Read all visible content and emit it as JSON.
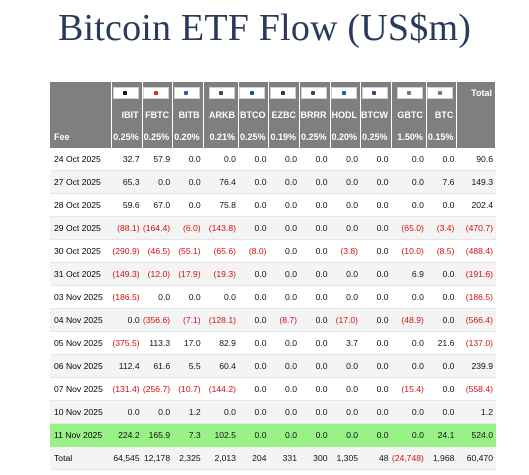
{
  "title": "Bitcoin ETF Flow (US$m)",
  "colors": {
    "header_bg": "#7f7f7f",
    "negative": "#d01010",
    "highlight_row": "#9af287"
  },
  "logos": [
    "BlackRock",
    "Fidelity",
    "Bitwise",
    "ARK 21SHARES",
    "Invesco",
    "Franklin",
    "VALKYRIE",
    "VanEck",
    "WisdomTree",
    "GRAYSCALE",
    "GRAYSCALE"
  ],
  "logo_colors": [
    "#111111",
    "#e12828",
    "#2a5ab8",
    "#444444",
    "#1a4c9c",
    "#2a3a5c",
    "#444444",
    "#1c5aa8",
    "#2a4a80",
    "#777777",
    "#777777"
  ],
  "tickers": [
    "IBIT",
    "FBTC",
    "BITB",
    "ARKB",
    "BTCO",
    "EZBC",
    "BRRR",
    "HODL",
    "BTCW",
    "GBTC",
    "BTC"
  ],
  "total_label": "Total",
  "fee_label": "Fee",
  "fees": [
    "0.25%",
    "0.25%",
    "0.20%",
    "0.21%",
    "0.25%",
    "0.19%",
    "0.25%",
    "0.20%",
    "0.25%",
    "1.50%",
    "0.15%"
  ],
  "rows": [
    {
      "date": "24 Oct 2025",
      "values": [
        "32.7",
        "57.9",
        "0.0",
        "0.0",
        "0.0",
        "0.0",
        "0.0",
        "0.0",
        "0.0",
        "0.0",
        "0.0"
      ],
      "total": "90.6"
    },
    {
      "date": "27 Oct 2025",
      "values": [
        "65.3",
        "0.0",
        "0.0",
        "76.4",
        "0.0",
        "0.0",
        "0.0",
        "0.0",
        "0.0",
        "0.0",
        "7.6"
      ],
      "total": "149.3"
    },
    {
      "date": "28 Oct 2025",
      "values": [
        "59.6",
        "67.0",
        "0.0",
        "75.8",
        "0.0",
        "0.0",
        "0.0",
        "0.0",
        "0.0",
        "0.0",
        "0.0"
      ],
      "total": "202.4"
    },
    {
      "date": "29 Oct 2025",
      "values": [
        "(88.1)",
        "(164.4)",
        "(6.0)",
        "(143.8)",
        "0.0",
        "0.0",
        "0.0",
        "0.0",
        "0.0",
        "(65.0)",
        "(3.4)"
      ],
      "total": "(470.7)"
    },
    {
      "date": "30 Oct 2025",
      "values": [
        "(290.9)",
        "(46.5)",
        "(55.1)",
        "(65.6)",
        "(8.0)",
        "0.0",
        "0.0",
        "(3.8)",
        "0.0",
        "(10.0)",
        "(8.5)"
      ],
      "total": "(488.4)"
    },
    {
      "date": "31 Oct 2025",
      "values": [
        "(149.3)",
        "(12.0)",
        "(17.9)",
        "(19.3)",
        "0.0",
        "0.0",
        "0.0",
        "0.0",
        "0.0",
        "6.9",
        "0.0"
      ],
      "total": "(191.6)"
    },
    {
      "date": "03 Nov 2025",
      "values": [
        "(186.5)",
        "0.0",
        "0.0",
        "0.0",
        "0.0",
        "0.0",
        "0.0",
        "0.0",
        "0.0",
        "0.0",
        "0.0"
      ],
      "total": "(186.5)"
    },
    {
      "date": "04 Nov 2025",
      "values": [
        "0.0",
        "(356.6)",
        "(7.1)",
        "(128.1)",
        "0.0",
        "(8.7)",
        "0.0",
        "(17.0)",
        "0.0",
        "(48.9)",
        "0.0"
      ],
      "total": "(566.4)"
    },
    {
      "date": "05 Nov 2025",
      "values": [
        "(375.5)",
        "113.3",
        "17.0",
        "82.9",
        "0.0",
        "0.0",
        "0.0",
        "3.7",
        "0.0",
        "0.0",
        "21.6"
      ],
      "total": "(137.0)"
    },
    {
      "date": "06 Nov 2025",
      "values": [
        "112.4",
        "61.6",
        "5.5",
        "60.4",
        "0.0",
        "0.0",
        "0.0",
        "0.0",
        "0.0",
        "0.0",
        "0.0"
      ],
      "total": "239.9"
    },
    {
      "date": "07 Nov 2025",
      "values": [
        "(131.4)",
        "(256.7)",
        "(10.7)",
        "(144.2)",
        "0.0",
        "0.0",
        "0.0",
        "0.0",
        "0.0",
        "(15.4)",
        "0.0"
      ],
      "total": "(558.4)"
    },
    {
      "date": "10 Nov 2025",
      "values": [
        "0.0",
        "0.0",
        "1.2",
        "0.0",
        "0.0",
        "0.0",
        "0.0",
        "0.0",
        "0.0",
        "0.0",
        "0.0"
      ],
      "total": "1.2"
    },
    {
      "date": "11 Nov 2025",
      "values": [
        "224.2",
        "165.9",
        "7.3",
        "102.5",
        "0.0",
        "0.0",
        "0.0",
        "0.0",
        "0.0",
        "0.0",
        "24.1"
      ],
      "total": "524.0",
      "highlight": true
    }
  ],
  "totals_row": {
    "label": "Total",
    "values": [
      "64,545",
      "12,178",
      "2,325",
      "2,013",
      "204",
      "331",
      "300",
      "1,305",
      "48",
      "(24,748)",
      "1,968"
    ],
    "total": "60,470"
  }
}
